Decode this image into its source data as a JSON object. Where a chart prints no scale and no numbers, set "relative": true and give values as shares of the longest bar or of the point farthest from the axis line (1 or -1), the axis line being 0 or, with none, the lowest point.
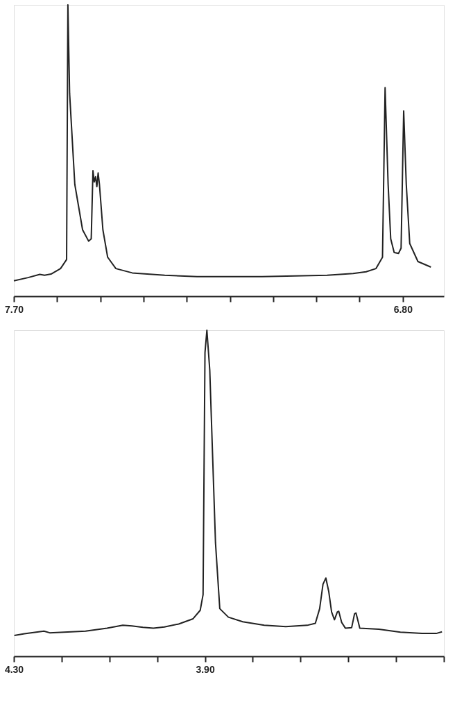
{
  "chart_data": [
    {
      "type": "line",
      "relative": true,
      "xlim": [
        7.7,
        6.705
      ],
      "xticks": [
        {
          "value": 7.7,
          "label": "7.70"
        },
        {
          "value": 7.6,
          "label": null
        },
        {
          "value": 7.5,
          "label": null
        },
        {
          "value": 7.4,
          "label": null
        },
        {
          "value": 7.3,
          "label": null
        },
        {
          "value": 7.2,
          "label": null
        },
        {
          "value": 7.1,
          "label": null
        },
        {
          "value": 7.0,
          "label": null
        },
        {
          "value": 6.9,
          "label": null
        },
        {
          "value": 6.8,
          "label": "6.80"
        }
      ],
      "x": [
        7.7,
        7.667,
        7.64,
        7.629,
        7.614,
        7.592,
        7.578,
        7.575,
        7.571,
        7.559,
        7.541,
        7.527,
        7.521,
        7.517,
        7.514,
        7.511,
        7.508,
        7.505,
        7.502,
        7.494,
        7.483,
        7.464,
        7.426,
        7.351,
        7.276,
        7.126,
        6.975,
        6.915,
        6.885,
        6.862,
        6.847,
        6.841,
        6.834,
        6.828,
        6.82,
        6.81,
        6.804,
        6.798,
        6.792,
        6.784,
        6.765,
        6.735
      ],
      "series": [
        {
          "color": "#222222",
          "values": [
            0.053,
            0.064,
            0.075,
            0.072,
            0.076,
            0.095,
            0.126,
            1.0,
            0.696,
            0.384,
            0.228,
            0.189,
            0.197,
            0.431,
            0.392,
            0.41,
            0.376,
            0.423,
            0.384,
            0.228,
            0.134,
            0.095,
            0.08,
            0.072,
            0.067,
            0.067,
            0.072,
            0.078,
            0.084,
            0.095,
            0.134,
            0.716,
            0.384,
            0.197,
            0.15,
            0.147,
            0.165,
            0.636,
            0.384,
            0.181,
            0.119,
            0.1
          ]
        }
      ]
    },
    {
      "type": "line",
      "relative": true,
      "xlim": [
        4.3,
        3.4
      ],
      "xticks": [
        {
          "value": 4.3,
          "label": "4.30"
        },
        {
          "value": 4.2,
          "label": null
        },
        {
          "value": 4.1,
          "label": null
        },
        {
          "value": 4.0,
          "label": null
        },
        {
          "value": 3.9,
          "label": "3.90"
        },
        {
          "value": 3.8,
          "label": null
        },
        {
          "value": 3.7,
          "label": null
        },
        {
          "value": 3.6,
          "label": null
        },
        {
          "value": 3.5,
          "label": null
        },
        {
          "value": 3.4,
          "label": null
        }
      ],
      "x": [
        4.299,
        4.278,
        4.237,
        4.225,
        4.195,
        4.15,
        4.105,
        4.072,
        4.053,
        4.03,
        4.008,
        3.985,
        3.955,
        3.925,
        3.91,
        3.904,
        3.9,
        3.896,
        3.89,
        3.884,
        3.878,
        3.869,
        3.851,
        3.821,
        3.776,
        3.731,
        3.686,
        3.669,
        3.66,
        3.653,
        3.647,
        3.641,
        3.635,
        3.629,
        3.623,
        3.62,
        3.614,
        3.606,
        3.593,
        3.587,
        3.584,
        3.579,
        3.576,
        3.536,
        3.491,
        3.446,
        3.416,
        3.404
      ],
      "series": [
        {
          "color": "#222222",
          "values": [
            0.064,
            0.069,
            0.077,
            0.072,
            0.074,
            0.077,
            0.086,
            0.095,
            0.093,
            0.089,
            0.086,
            0.09,
            0.099,
            0.115,
            0.141,
            0.189,
            0.931,
            1.0,
            0.878,
            0.613,
            0.348,
            0.146,
            0.12,
            0.106,
            0.095,
            0.091,
            0.095,
            0.101,
            0.146,
            0.221,
            0.24,
            0.199,
            0.136,
            0.112,
            0.136,
            0.138,
            0.104,
            0.086,
            0.088,
            0.13,
            0.133,
            0.104,
            0.086,
            0.083,
            0.074,
            0.07,
            0.07,
            0.075
          ]
        }
      ]
    }
  ]
}
